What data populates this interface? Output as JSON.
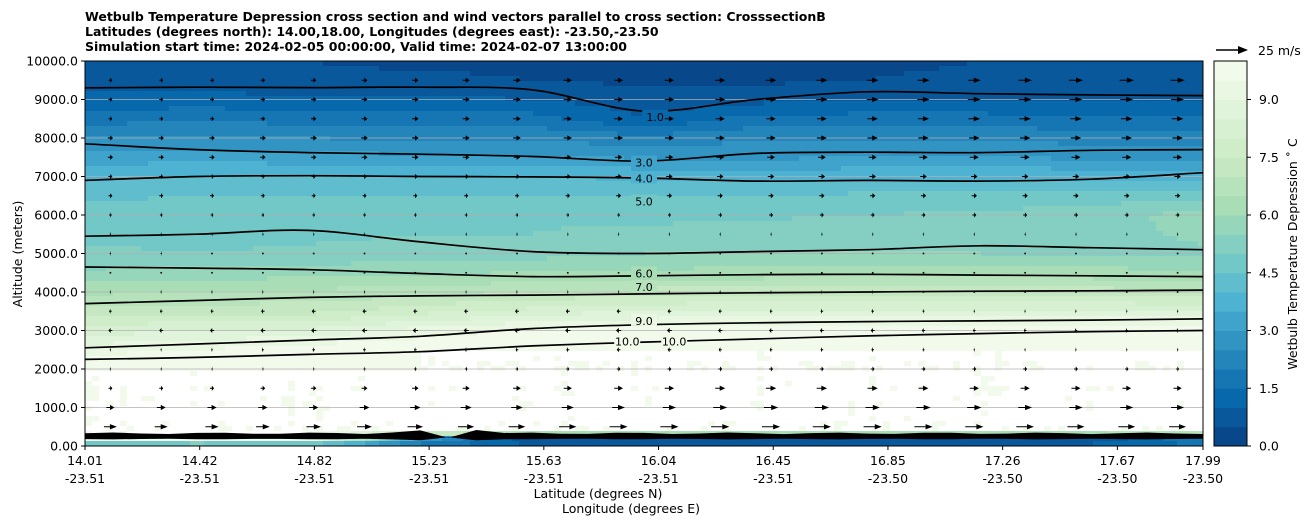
{
  "chart_data": {
    "type": "contour",
    "title_lines": [
      "Wetbulb Temperature Depression cross section and wind vectors parallel to cross section: CrosssectionB",
      "Latitudes (degrees north): 14.00,18.00, Longitudes (degrees east): -23.50,-23.50",
      "Simulation start time: 2024-02-05 00:00:00, Valid time: 2024-02-07 13:00:00"
    ],
    "ylabel": "Altitude (meters)",
    "xlabel_lat": "Latitude (degrees N)",
    "xlabel_lon": "Longitude (degrees E)",
    "ylim": [
      0,
      10000
    ],
    "yticks": [
      "0.00",
      "1000.0",
      "2000.0",
      "3000.0",
      "4000.0",
      "5000.0",
      "6000.0",
      "7000.0",
      "8000.0",
      "9000.0",
      "10000.0"
    ],
    "ytick_values": [
      0,
      1000,
      2000,
      3000,
      4000,
      5000,
      6000,
      7000,
      8000,
      9000,
      10000
    ],
    "x_range": [
      0,
      1
    ],
    "xticks": [
      {
        "pos": 0.0,
        "lat": "14.01",
        "lon": "-23.51"
      },
      {
        "pos": 0.1026,
        "lat": "14.42",
        "lon": "-23.51"
      },
      {
        "pos": 0.2052,
        "lat": "14.82",
        "lon": "-23.51"
      },
      {
        "pos": 0.3078,
        "lat": "15.23",
        "lon": "-23.51"
      },
      {
        "pos": 0.4104,
        "lat": "15.63",
        "lon": "-23.51"
      },
      {
        "pos": 0.513,
        "lat": "16.04",
        "lon": "-23.51"
      },
      {
        "pos": 0.6156,
        "lat": "16.45",
        "lon": "-23.51"
      },
      {
        "pos": 0.7182,
        "lat": "16.85",
        "lon": "-23.50"
      },
      {
        "pos": 0.8208,
        "lat": "17.26",
        "lon": "-23.50"
      },
      {
        "pos": 0.9234,
        "lat": "17.67",
        "lon": "-23.50"
      },
      {
        "pos": 1.0,
        "lat": "17.99",
        "lon": "-23.50"
      }
    ],
    "colorbar": {
      "label": "Wetbulb Temperature Depression ˚ C",
      "range": [
        0,
        10
      ],
      "ticks": [
        "0.0",
        "1.5",
        "3.0",
        "4.5",
        "6.0",
        "7.5",
        "9.0"
      ],
      "tick_values": [
        0,
        1.5,
        3.0,
        4.5,
        6.0,
        7.5,
        9.0
      ],
      "colors": [
        "#084081",
        "#0868ac",
        "#2b8cbe",
        "#4eb3d3",
        "#7bccc4",
        "#a8ddb5",
        "#ccebc5",
        "#e0f3db",
        "#f7fcf0"
      ]
    },
    "wind_key": {
      "label": "25 m/s"
    },
    "contour_levels": [
      {
        "level": 1.0,
        "label": "1.0",
        "labels": [
          {
            "text": "1.0",
            "x": 0.51,
            "y": 8550
          }
        ],
        "heights": [
          9300,
          9320,
          9310,
          9320,
          9250,
          8700,
          9000,
          9200,
          9150,
          9120,
          9100
        ]
      },
      {
        "level": 3.0,
        "label": "3.0",
        "labels": [
          {
            "text": "3.0",
            "x": 0.5,
            "y": 7360
          }
        ],
        "heights": [
          7850,
          7700,
          7620,
          7580,
          7520,
          7400,
          7600,
          7630,
          7620,
          7680,
          7700
        ]
      },
      {
        "level": 4.0,
        "label": "4.0",
        "labels": [
          {
            "text": "4.0",
            "x": 0.5,
            "y": 6950
          }
        ],
        "heights": [
          6900,
          7000,
          7020,
          7000,
          6990,
          6960,
          6880,
          6900,
          6880,
          6930,
          7100
        ]
      },
      {
        "level": 5.0,
        "label": "5.0",
        "labels": [
          {
            "text": "5.0",
            "x": 0.5,
            "y": 6350
          }
        ],
        "heights": [
          5450,
          5500,
          5600,
          5300,
          5050,
          5000,
          5050,
          5100,
          5200,
          5150,
          5100
        ]
      },
      {
        "level": 6.0,
        "label": "6.0",
        "labels": [
          {
            "text": "6.0",
            "x": 0.5,
            "y": 4480
          }
        ],
        "heights": [
          4650,
          4620,
          4580,
          4480,
          4400,
          4420,
          4450,
          4460,
          4440,
          4420,
          4400
        ]
      },
      {
        "level": 7.0,
        "label": "7.0",
        "labels": [
          {
            "text": "7.0",
            "x": 0.5,
            "y": 4130
          }
        ],
        "heights": [
          3700,
          3780,
          3860,
          3900,
          3920,
          3950,
          3980,
          4000,
          4020,
          4030,
          4050
        ]
      },
      {
        "level": 9.0,
        "label": "9.0",
        "labels": [
          {
            "text": "9.0",
            "x": 0.5,
            "y": 3250
          }
        ],
        "heights": [
          2550,
          2650,
          2750,
          2850,
          3050,
          3150,
          3200,
          3230,
          3250,
          3270,
          3300
        ]
      },
      {
        "level": 10.0,
        "label": "10.0",
        "labels": [
          {
            "text": "10.0",
            "x": 0.485,
            "y": 2710
          },
          {
            "text": "10.0",
            "x": 0.527,
            "y": 2710
          }
        ],
        "heights": [
          2250,
          2300,
          2380,
          2450,
          2600,
          2700,
          2780,
          2860,
          2920,
          2970,
          3000
        ]
      }
    ],
    "field_x": [
      0,
      0.1,
      0.2,
      0.3,
      0.4,
      0.5,
      0.6,
      0.7,
      0.8,
      0.9,
      1.0
    ],
    "field_y": [
      0,
      200,
      400,
      1000,
      2000,
      2500,
      3000,
      3500,
      4000,
      4500,
      5000,
      5500,
      6000,
      6500,
      7000,
      7500,
      8000,
      8500,
      9000,
      9500,
      10000
    ],
    "field_values": [
      [
        2.5,
        2.6,
        2.5,
        1.5,
        1.0,
        0.8,
        0.8,
        0.9,
        1.0,
        1.2,
        1.5
      ],
      [
        10,
        10,
        10,
        3.0,
        0.5,
        0.5,
        0.5,
        0.5,
        0.5,
        0.5,
        2.0
      ],
      [
        10,
        10,
        10,
        10,
        10,
        10,
        10,
        10,
        10,
        10,
        10
      ],
      [
        10,
        10,
        10,
        10,
        10,
        10,
        10,
        10,
        10,
        10,
        10
      ],
      [
        10,
        10,
        10,
        10,
        10,
        10,
        10,
        10,
        10,
        10,
        10
      ],
      [
        9.3,
        9.5,
        9.8,
        10,
        10,
        10,
        10,
        10,
        10,
        10,
        10
      ],
      [
        8.2,
        8.5,
        8.6,
        9.2,
        9.6,
        9.8,
        9.9,
        9.9,
        9.9,
        9.9,
        9.9
      ],
      [
        7.4,
        7.3,
        7.3,
        7.8,
        8.2,
        8.5,
        8.6,
        8.6,
        8.6,
        8.6,
        8.5
      ],
      [
        6.4,
        6.5,
        6.6,
        6.8,
        7.0,
        7.2,
        7.2,
        7.3,
        7.3,
        7.2,
        7.1
      ],
      [
        5.6,
        5.7,
        5.8,
        5.9,
        6.0,
        6.1,
        6.2,
        6.2,
        6.3,
        6.2,
        6.1
      ],
      [
        5.1,
        5.0,
        5.1,
        5.2,
        5.3,
        5.5,
        5.5,
        5.5,
        5.5,
        5.4,
        5.4
      ],
      [
        4.9,
        4.8,
        4.9,
        5.0,
        5.0,
        5.2,
        5.3,
        5.3,
        5.4,
        5.3,
        5.6
      ],
      [
        4.7,
        4.8,
        4.9,
        5.0,
        4.9,
        4.8,
        4.9,
        5.0,
        5.1,
        5.3,
        5.7
      ],
      [
        4.4,
        4.5,
        4.5,
        4.5,
        4.5,
        4.5,
        4.5,
        4.6,
        4.6,
        4.7,
        4.8
      ],
      [
        3.9,
        4.1,
        4.0,
        4.0,
        4.0,
        3.9,
        3.8,
        3.9,
        3.9,
        3.9,
        3.7
      ],
      [
        3.2,
        3.3,
        3.2,
        3.1,
        3.1,
        2.9,
        2.9,
        3.0,
        3.0,
        2.9,
        2.8
      ],
      [
        2.5,
        2.5,
        2.5,
        2.4,
        2.4,
        2.2,
        2.4,
        2.4,
        2.4,
        2.3,
        2.3
      ],
      [
        1.8,
        1.9,
        1.8,
        1.8,
        1.7,
        1.0,
        1.7,
        1.7,
        1.7,
        1.6,
        1.6
      ],
      [
        1.1,
        1.2,
        1.1,
        1.1,
        1.0,
        0.7,
        0.8,
        1.0,
        1.0,
        0.9,
        0.9
      ],
      [
        0.8,
        0.7,
        0.6,
        0.6,
        0.5,
        0.4,
        0.4,
        0.5,
        0.6,
        0.6,
        0.6
      ],
      [
        0.6,
        0.5,
        0.5,
        0.4,
        0.4,
        0.3,
        0.3,
        0.4,
        0.5,
        0.5,
        0.5
      ]
    ],
    "wind_rows": [
      {
        "z": 250,
        "u": [
          6,
          6,
          7,
          8,
          9,
          10,
          11,
          11,
          11,
          11,
          11
        ]
      },
      {
        "z": 500,
        "u": [
          10,
          10,
          11,
          12,
          13,
          14,
          14,
          14,
          14,
          13,
          13
        ]
      },
      {
        "z": 1000,
        "u": [
          6,
          7,
          7,
          8,
          9,
          10,
          11,
          11,
          11,
          10,
          10
        ]
      },
      {
        "z": 1500,
        "u": [
          3,
          3,
          4,
          5,
          6,
          7,
          8,
          8,
          7,
          7,
          6
        ]
      },
      {
        "z": 2000,
        "u": [
          1,
          1,
          1,
          2,
          2,
          3,
          3,
          3,
          3,
          3,
          2
        ]
      },
      {
        "z": 2500,
        "u": [
          -1,
          -1,
          -2,
          -2,
          -2,
          -3,
          -2,
          -2,
          -1,
          -1,
          -1
        ]
      },
      {
        "z": 3000,
        "u": [
          -3,
          -3,
          -4,
          -4,
          -4,
          -4,
          -3,
          -3,
          -2,
          -2,
          -2
        ]
      },
      {
        "z": 3500,
        "u": [
          -2,
          -2,
          -3,
          -3,
          -3,
          -3,
          -2,
          -2,
          -1,
          -1,
          -1
        ]
      },
      {
        "z": 4000,
        "u": [
          -1,
          -1,
          -1,
          -1,
          -1,
          -1,
          -1,
          -1,
          0,
          0,
          0
        ]
      },
      {
        "z": 4500,
        "u": [
          0,
          0,
          0,
          0,
          0,
          0,
          0,
          0,
          0,
          0,
          0
        ]
      },
      {
        "z": 5000,
        "u": [
          1,
          1,
          0,
          0,
          0,
          0,
          0,
          0,
          0,
          0,
          1
        ]
      },
      {
        "z": 5500,
        "u": [
          1,
          1,
          1,
          1,
          1,
          1,
          1,
          1,
          1,
          1,
          1
        ]
      },
      {
        "z": 6000,
        "u": [
          2,
          2,
          2,
          2,
          2,
          2,
          3,
          3,
          3,
          3,
          3
        ]
      },
      {
        "z": 6500,
        "u": [
          3,
          3,
          3,
          3,
          3,
          4,
          4,
          4,
          4,
          4,
          4
        ]
      },
      {
        "z": 7000,
        "u": [
          3,
          3,
          3,
          4,
          4,
          5,
          5,
          5,
          5,
          5,
          5
        ]
      },
      {
        "z": 7500,
        "u": [
          4,
          4,
          4,
          5,
          5,
          6,
          6,
          6,
          7,
          7,
          7
        ]
      },
      {
        "z": 8000,
        "u": [
          4,
          4,
          5,
          5,
          6,
          7,
          7,
          8,
          8,
          8,
          8
        ]
      },
      {
        "z": 8500,
        "u": [
          3,
          3,
          4,
          5,
          6,
          7,
          7,
          8,
          9,
          9,
          9
        ]
      },
      {
        "z": 9000,
        "u": [
          3,
          3,
          4,
          5,
          6,
          7,
          8,
          9,
          10,
          10,
          10
        ]
      },
      {
        "z": 9500,
        "u": [
          3,
          3,
          4,
          5,
          6,
          7,
          8,
          9,
          10,
          11,
          11
        ]
      }
    ]
  }
}
